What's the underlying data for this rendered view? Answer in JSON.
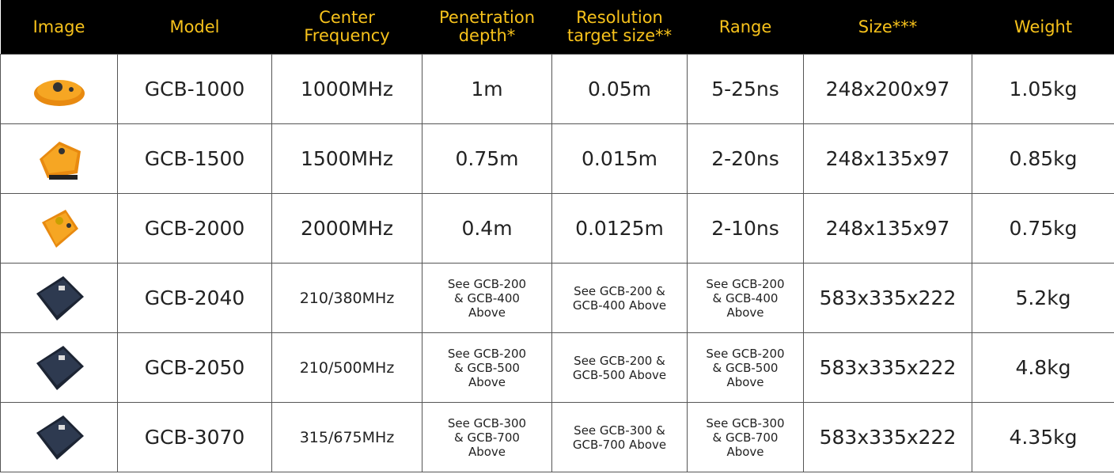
{
  "table": {
    "header": [
      "Image",
      "Model",
      "Center\nFrequency",
      "Penetration\ndepth*",
      "Resolution\ntarget size**",
      "Range",
      "Size***",
      "Weight"
    ],
    "rows": [
      [
        "GCB-1000",
        "1000MHz",
        "1m",
        "0.05m",
        "5-25ns",
        "248x200x97",
        "1.05kg"
      ],
      [
        "GCB-1500",
        "1500MHz",
        "0.75m",
        "0.015m",
        "2-20ns",
        "248x135x97",
        "0.85kg"
      ],
      [
        "GCB-2000",
        "2000MHz",
        "0.4m",
        "0.0125m",
        "2-10ns",
        "248x135x97",
        "0.75kg"
      ],
      [
        "GCB-2040",
        "210/380MHz",
        "See GCB-200\n& GCB-400\nAbove",
        "See GCB-200 &\nGCB-400 Above",
        "See GCB-200\n& GCB-400\nAbove",
        "583x335x222",
        "5.2kg"
      ],
      [
        "GCB-2050",
        "210/500MHz",
        "See GCB-200\n& GCB-500\nAbove",
        "See GCB-200 &\nGCB-500 Above",
        "See GCB-200\n& GCB-500\nAbove",
        "583x335x222",
        "4.8kg"
      ],
      [
        "GCB-3070",
        "315/675MHz",
        "See GCB-300\n& GCB-700\nAbove",
        "See GCB-300 &\nGCB-700 Above",
        "See GCB-300\n& GCB-700\nAbove",
        "583x335x222",
        "4.35kg"
      ]
    ]
  }
}
